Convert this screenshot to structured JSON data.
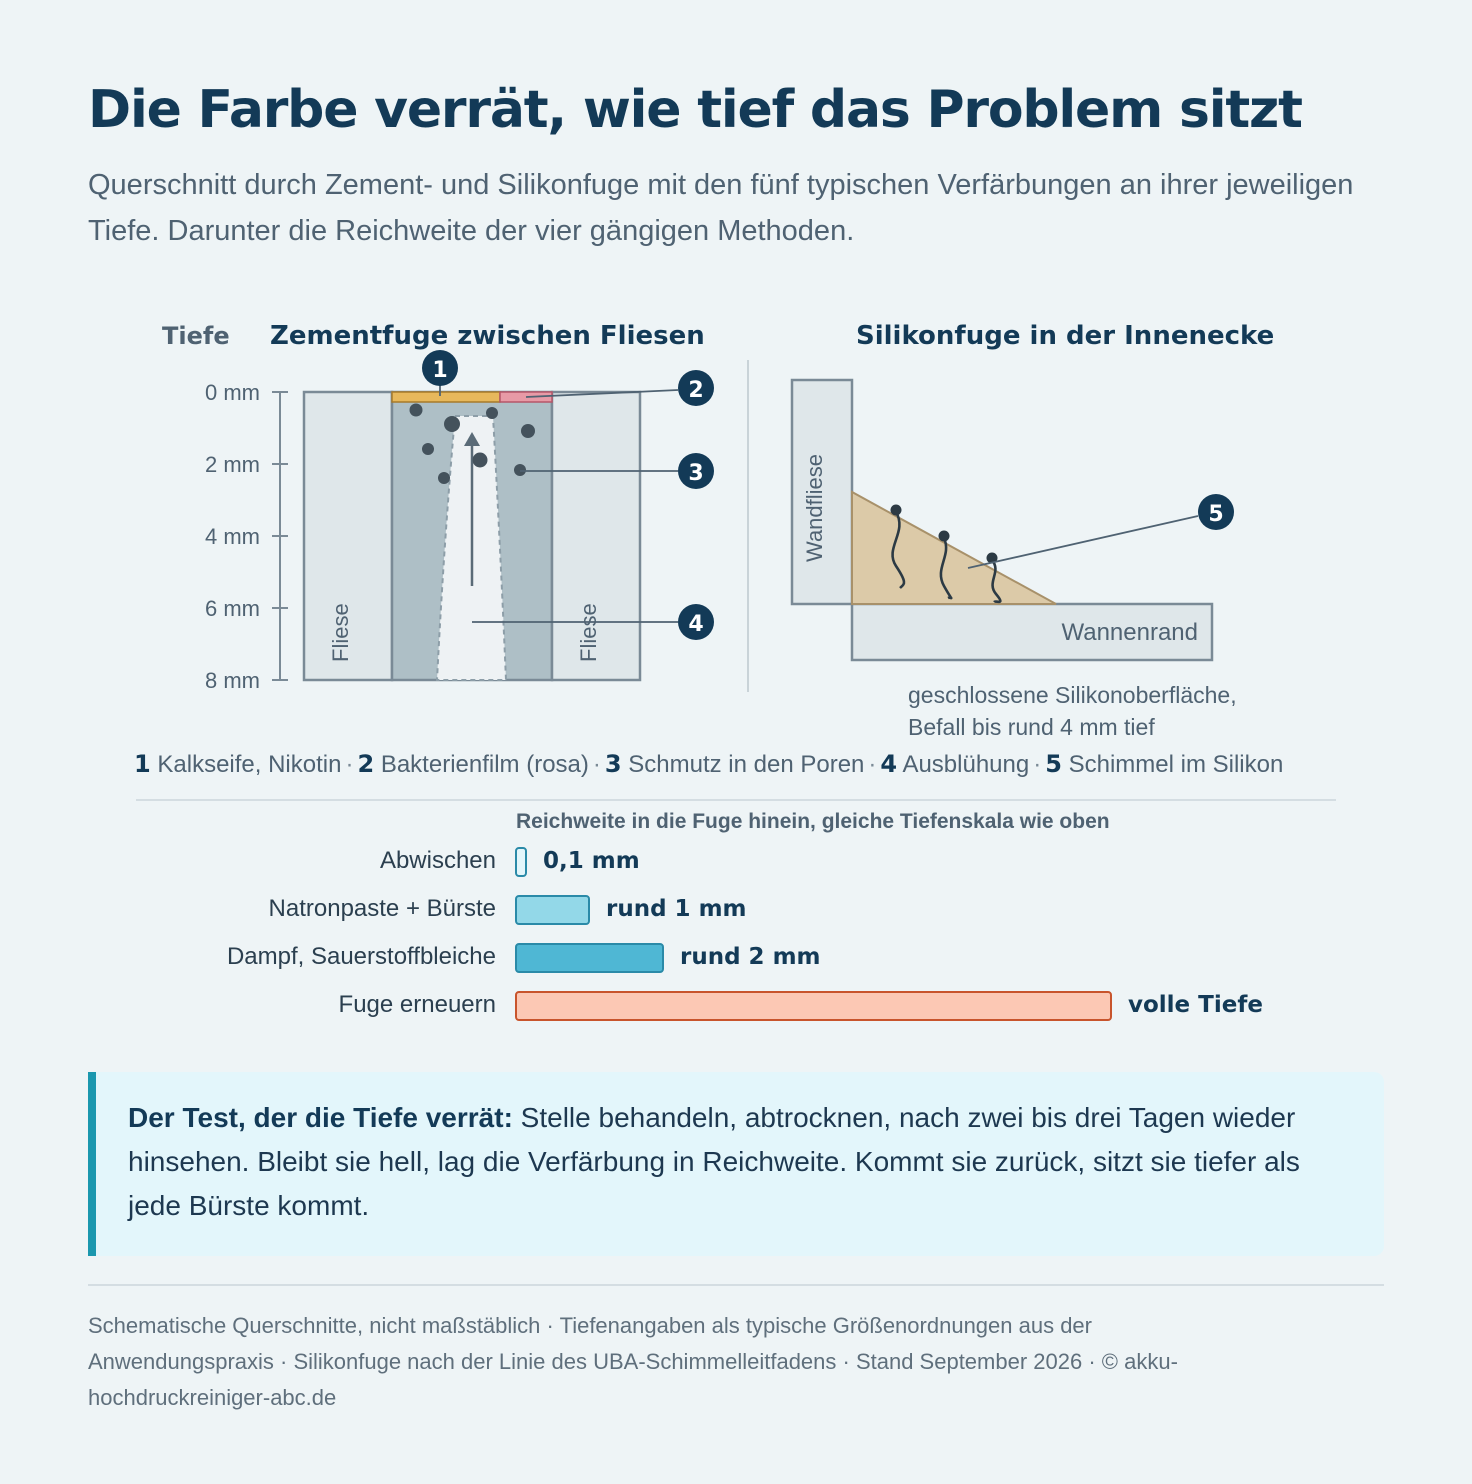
{
  "title": "Die Farbe verrät, wie tief das Problem sitzt",
  "subtitle": "Querschnitt durch Zement- und Silikonfuge mit den fünf typischen Verfärbungen an ihrer jeweiligen Tiefe. Darunter die Reichweite der vier gängigen Methoden.",
  "cement": {
    "depth_axis_title": "Tiefe",
    "heading": "Zementfuge zwischen Fliesen",
    "depth_ticks": [
      "0 mm",
      "2 mm",
      "4 mm",
      "6 mm",
      "8 mm"
    ],
    "tile_label": "Fliese"
  },
  "silicone": {
    "heading": "Silikonfuge in der Innenecke",
    "wall_tile_label": "Wandfliese",
    "tub_edge_label": "Wannenrand",
    "note_line1": "geschlossene Silikonoberfläche,",
    "note_line2": "Befall bis rund 4 mm tief"
  },
  "markers": [
    "1",
    "2",
    "3",
    "4",
    "5"
  ],
  "legend": [
    {
      "num": "1",
      "text": "Kalkseife, Nikotin"
    },
    {
      "num": "2",
      "text": "Bakterienfilm (rosa)"
    },
    {
      "num": "3",
      "text": "Schmutz in den Poren"
    },
    {
      "num": "4",
      "text": "Ausblühung"
    },
    {
      "num": "5",
      "text": "Schimmel im Silikon"
    }
  ],
  "reach": {
    "heading": "Reichweite in die Fuge hinein, gleiche Tiefenskala wie oben",
    "methods": [
      {
        "label": "Abwischen",
        "value": "0,1 mm",
        "depth_fraction": 0.0125,
        "fill": "#e3f6fb",
        "stroke": "#2a8aa8"
      },
      {
        "label": "Natronpaste + Bürste",
        "value": "rund 1 mm",
        "depth_fraction": 0.125,
        "fill": "#93d8e8",
        "stroke": "#2a8aa8"
      },
      {
        "label": "Dampf, Sauerstoffbleiche",
        "value": "rund 2 mm",
        "depth_fraction": 0.25,
        "fill": "#4fb7d4",
        "stroke": "#2a8aa8"
      },
      {
        "label": "Fuge erneuern",
        "value": "volle Tiefe",
        "depth_fraction": 1.0,
        "fill": "#fcc8b4",
        "stroke": "#c8542c"
      }
    ]
  },
  "callout": {
    "lead": "Der Test, der die Tiefe verrät:",
    "text": " Stelle behandeln, abtrocknen, nach zwei bis drei Tagen wieder hinsehen. Bleibt sie hell, lag die Verfärbung in Reichweite. Kommt sie zurück, sitzt sie tiefer als jede Bürste kommt."
  },
  "footer": "Schematische Querschnitte, nicht maßstäblich · Tiefenangaben als typische Größenordnungen aus der Anwendungspraxis · Silikonfuge nach der Linie des UBA-Schimmelleitfadens · Stand September 2026 · © akku-hochdruckreiniger-abc.de",
  "colors": {
    "navy": "#133a57",
    "tile": "#dfe7ea",
    "grout": "#aebfc6",
    "limescale": "#e7b85c",
    "biofilm": "#e79aa6",
    "silicone": "#dccaa8",
    "accent": "#1a97ae"
  }
}
